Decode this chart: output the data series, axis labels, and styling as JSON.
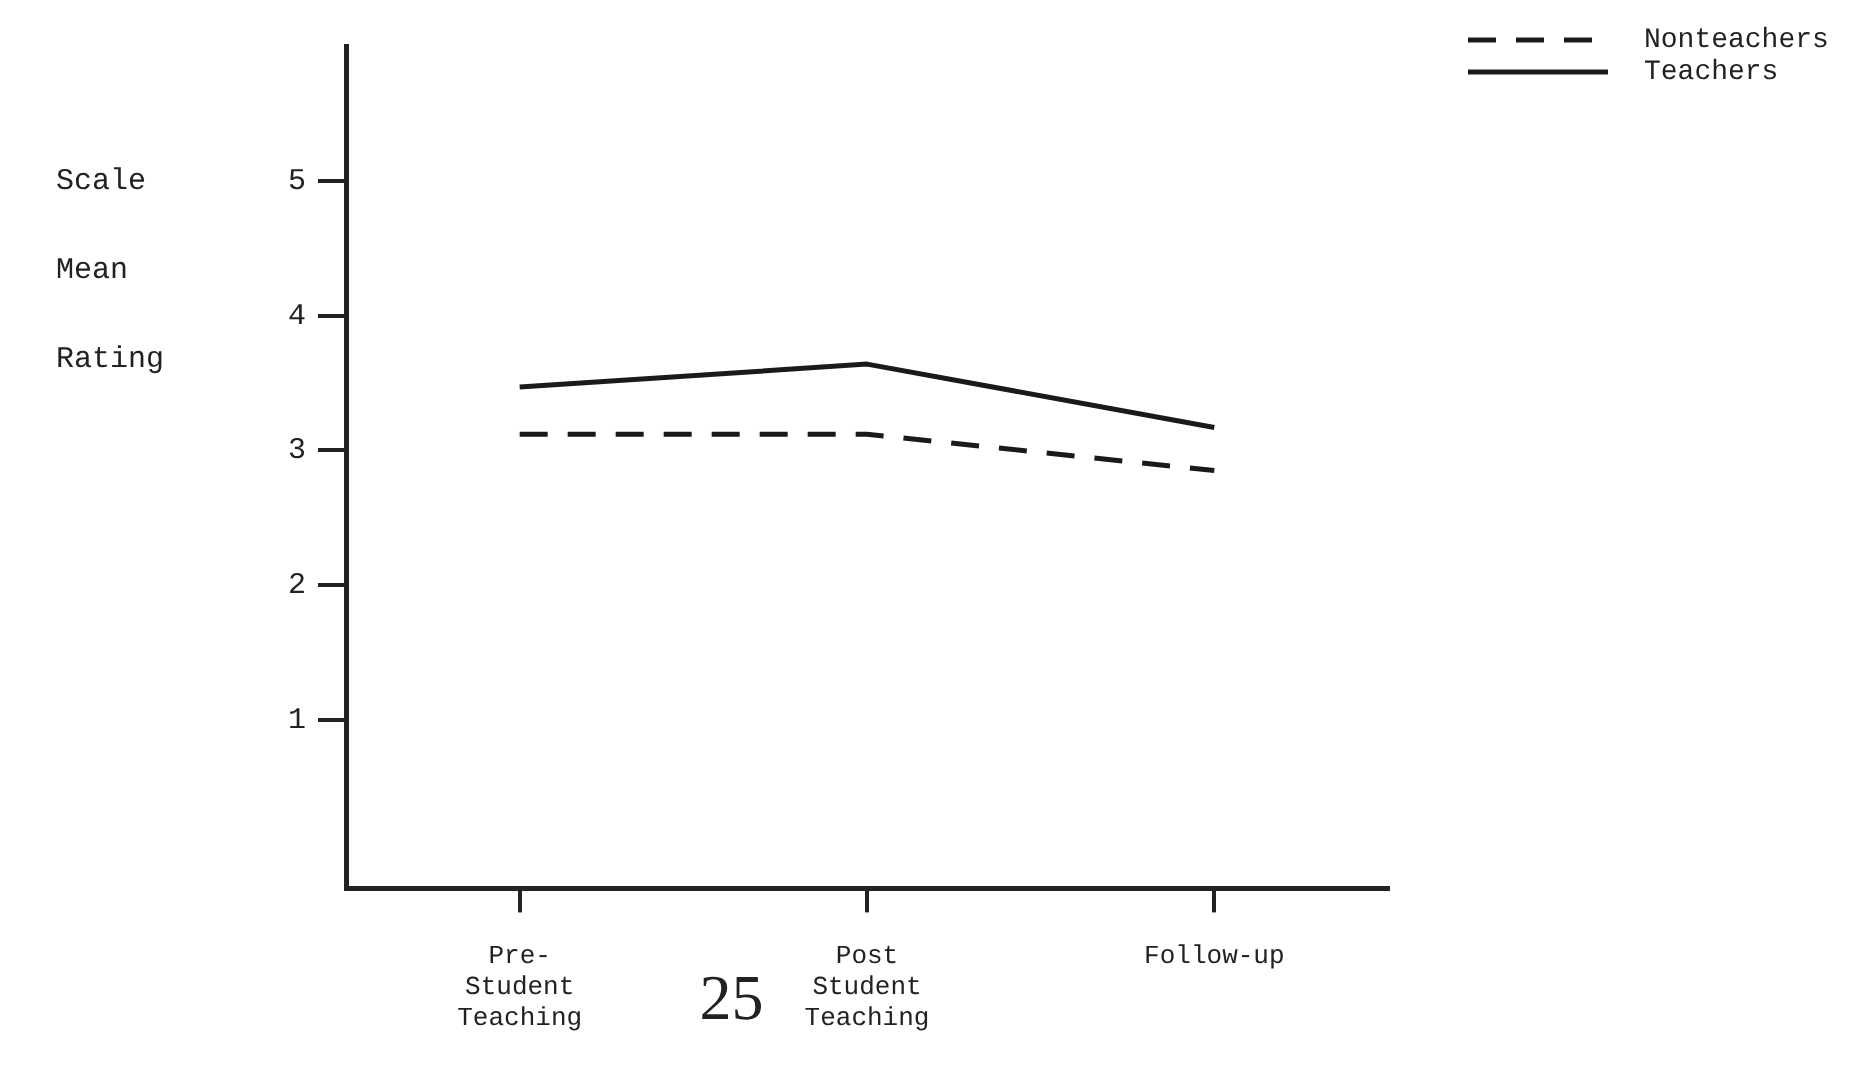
{
  "chart_data": {
    "type": "line",
    "ylabel": "Scale Mean Rating",
    "categories": [
      "Pre-\nStudent\nTeaching",
      "Post\nStudent\nTeaching",
      "Follow-up"
    ],
    "series": [
      {
        "name": "Nonteachers",
        "color": "#1a1a1a",
        "line_style": "dashed",
        "values": [
          3.12,
          3.12,
          2.85
        ]
      },
      {
        "name": "Teachers",
        "color": "#1a1a1a",
        "line_style": "solid",
        "values": [
          3.47,
          3.64,
          3.17
        ]
      }
    ],
    "ylim": [
      -0.25,
      6
    ],
    "yticks": [
      1,
      2,
      3,
      4,
      5
    ],
    "grid": false,
    "legend": "top right",
    "marker": "none",
    "annotations": [
      "25"
    ]
  }
}
